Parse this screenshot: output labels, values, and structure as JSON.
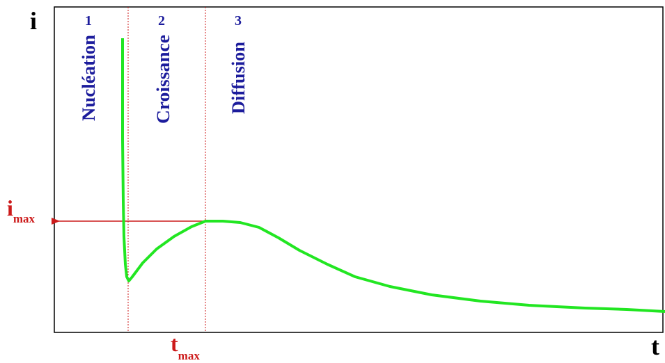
{
  "axes": {
    "y_label": "i",
    "x_label": "t"
  },
  "regions": [
    {
      "number": "1",
      "name": "Nucléation"
    },
    {
      "number": "2",
      "name": "Croissance"
    },
    {
      "number": "3",
      "name": "Diffusion"
    }
  ],
  "markers": {
    "i_max": {
      "main": "i",
      "sub": "max"
    },
    "t_max": {
      "main": "t",
      "sub": "max"
    }
  }
}
